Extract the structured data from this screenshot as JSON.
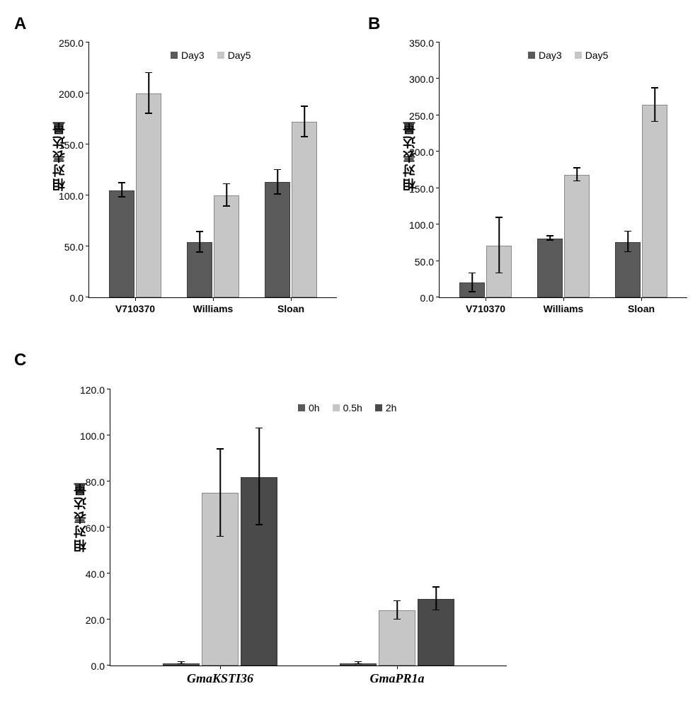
{
  "colors": {
    "dark": "#5a5a5a",
    "light": "#c6c6c6",
    "darker": "#4a4a4a",
    "error": "#000000",
    "axis": "#000000"
  },
  "panelA": {
    "label": "A",
    "y_axis_label": "相对表达量",
    "ylim": [
      0,
      250
    ],
    "ytick_step": 50,
    "categories": [
      "V710370",
      "Williams",
      "Sloan"
    ],
    "series": [
      {
        "name": "Day3",
        "color_key": "dark",
        "values": [
          105,
          54,
          113
        ],
        "errors": [
          7,
          10,
          12
        ]
      },
      {
        "name": "Day5",
        "color_key": "light",
        "values": [
          200,
          100,
          172
        ],
        "errors": [
          20,
          11,
          15
        ]
      }
    ],
    "legend": [
      "Day3",
      "Day5"
    ]
  },
  "panelB": {
    "label": "B",
    "y_axis_label": "相对表达量",
    "ylim": [
      0,
      350
    ],
    "ytick_step": 50,
    "categories": [
      "V710370",
      "Williams",
      "Sloan"
    ],
    "series": [
      {
        "name": "Day3",
        "color_key": "dark",
        "values": [
          20,
          81,
          76
        ],
        "errors": [
          13,
          3,
          14
        ]
      },
      {
        "name": "Day5",
        "color_key": "light",
        "values": [
          71,
          168,
          264
        ],
        "errors": [
          38,
          9,
          23
        ]
      }
    ],
    "legend": [
      "Day3",
      "Day5"
    ]
  },
  "panelC": {
    "label": "C",
    "y_axis_label": "相对表达量",
    "ylim": [
      0,
      120
    ],
    "ytick_step": 20,
    "categories": [
      "GmaKSTI36",
      "GmaPR1a"
    ],
    "series": [
      {
        "name": "0h",
        "color_key": "dark",
        "values": [
          1,
          1
        ],
        "errors": [
          0.5,
          0.5
        ]
      },
      {
        "name": "0.5h",
        "color_key": "light",
        "values": [
          75,
          24
        ],
        "errors": [
          19,
          4
        ]
      },
      {
        "name": "2h",
        "color_key": "darker",
        "values": [
          82,
          29
        ],
        "errors": [
          21,
          5
        ]
      }
    ],
    "legend": [
      "0h",
      "0.5h",
      "2h"
    ]
  }
}
